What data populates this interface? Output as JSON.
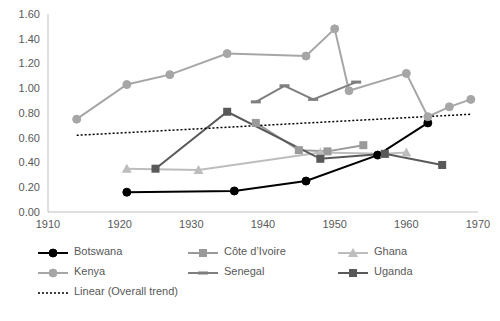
{
  "chart_data": {
    "type": "line",
    "xlim": [
      1910,
      1970
    ],
    "xticks": [
      1910,
      1920,
      1930,
      1940,
      1950,
      1960,
      1970
    ],
    "ylim": [
      0,
      1.6
    ],
    "yticks": [
      {
        "value": 0,
        "label": "0.00"
      },
      {
        "value": 0.2,
        "label": "0.20"
      },
      {
        "value": 0.4,
        "label": "0.40"
      },
      {
        "value": 0.6,
        "label": "0.60"
      },
      {
        "value": 0.8,
        "label": "0.80"
      },
      {
        "value": 1.0,
        "label": "1.00"
      },
      {
        "value": 1.2,
        "label": "1.20"
      },
      {
        "value": 1.4,
        "label": "1.40"
      },
      {
        "value": 1.6,
        "label": "1.60"
      }
    ],
    "grid": false,
    "legend": "bottom",
    "series": [
      {
        "name": "Botswana",
        "color": "#000000",
        "marker": "circle",
        "line_style": "solid",
        "x": [
          1921,
          1936,
          1946,
          1956,
          1963
        ],
        "values": [
          0.16,
          0.17,
          0.25,
          0.46,
          0.72
        ]
      },
      {
        "name": "Côte d’Ivoire",
        "color": "#9a9a9a",
        "marker": "square",
        "line_style": "solid",
        "x": [
          1939,
          1945,
          1949,
          1954
        ],
        "values": [
          0.72,
          0.5,
          0.49,
          0.54
        ]
      },
      {
        "name": "Ghana",
        "color": "#bdbdbd",
        "marker": "triangle",
        "line_style": "solid",
        "x": [
          1921,
          1931,
          1948,
          1957,
          1960
        ],
        "values": [
          0.35,
          0.34,
          0.48,
          0.47,
          0.48
        ]
      },
      {
        "name": "Kenya",
        "color": "#a6a6a6",
        "marker": "circle",
        "line_style": "solid",
        "x": [
          1914,
          1921,
          1927,
          1935,
          1946,
          1950,
          1952,
          1960,
          1963,
          1966,
          1969
        ],
        "values": [
          0.75,
          1.03,
          1.11,
          1.28,
          1.26,
          1.48,
          0.98,
          1.12,
          0.77,
          0.85,
          0.91
        ]
      },
      {
        "name": "Senegal",
        "color": "#7f7f7f",
        "marker": "dash",
        "line_style": "solid",
        "x": [
          1939,
          1943,
          1947,
          1953
        ],
        "values": [
          0.89,
          1.02,
          0.91,
          1.05
        ]
      },
      {
        "name": "Uganda",
        "color": "#595959",
        "marker": "square",
        "line_style": "solid",
        "x": [
          1925,
          1935,
          1948,
          1957,
          1965
        ],
        "values": [
          0.35,
          0.81,
          0.43,
          0.47,
          0.38
        ]
      },
      {
        "name": "Linear (Overall trend)",
        "color": "#000000",
        "marker": "none",
        "line_style": "dotted",
        "x": [
          1914,
          1969
        ],
        "values": [
          0.62,
          0.79
        ]
      }
    ]
  }
}
